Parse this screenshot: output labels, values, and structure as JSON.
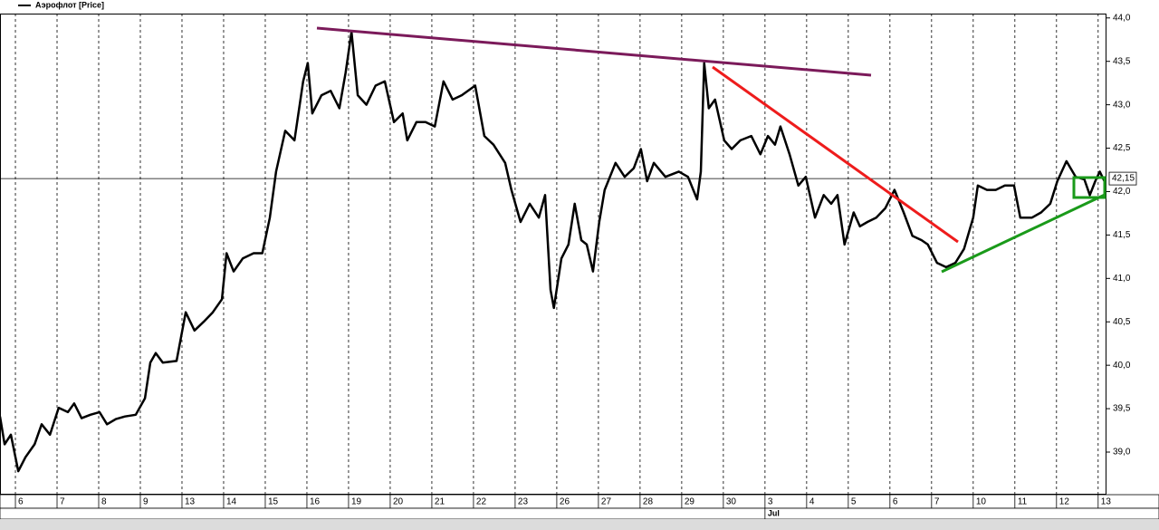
{
  "chart_data": {
    "type": "line",
    "series": [
      {
        "name": "Аэрофлот [Price]",
        "color": "#000000",
        "x": [
          -0.37,
          -0.26,
          -0.11,
          0.07,
          0.24,
          0.46,
          0.63,
          0.83,
          1.04,
          1.26,
          1.41,
          1.59,
          1.8,
          2.02,
          2.2,
          2.41,
          2.63,
          2.89,
          3.11,
          3.24,
          3.37,
          3.54,
          3.87,
          4.09,
          4.3,
          4.52,
          4.74,
          4.96,
          5.07,
          5.24,
          5.46,
          5.72,
          5.93,
          6.11,
          6.26,
          6.48,
          6.7,
          6.91,
          7.02,
          7.13,
          7.35,
          7.57,
          7.78,
          7.93,
          8.07,
          8.22,
          8.43,
          8.65,
          8.87,
          9.09,
          9.3,
          9.41,
          9.63,
          9.85,
          10.07,
          10.28,
          10.5,
          10.72,
          11.04,
          11.26,
          11.48,
          11.76,
          11.91,
          12.13,
          12.35,
          12.57,
          12.72,
          12.85,
          12.93,
          13.11,
          13.28,
          13.43,
          13.59,
          13.72,
          13.87,
          14.02,
          14.15,
          14.41,
          14.63,
          14.85,
          15.02,
          15.17,
          15.33,
          15.61,
          15.93,
          16.15,
          16.37,
          16.46,
          16.54,
          16.65,
          16.8,
          17.02,
          17.2,
          17.41,
          17.67,
          17.89,
          18.07,
          18.24,
          18.37,
          18.59,
          18.8,
          18.98,
          19.2,
          19.41,
          19.59,
          19.74,
          19.91,
          20.13,
          20.28,
          20.46,
          20.67,
          20.89,
          21.11,
          21.33,
          21.54,
          21.76,
          21.91,
          22.13,
          22.35,
          22.57,
          22.78,
          23.0,
          23.11,
          23.33,
          23.54,
          23.76,
          23.98,
          24.13,
          24.41,
          24.63,
          24.85,
          25.02,
          25.24,
          25.46,
          25.67,
          25.8,
          25.93,
          26.04,
          26.15
        ],
        "values": [
          39.41,
          39.09,
          39.2,
          38.78,
          38.94,
          39.09,
          39.32,
          39.2,
          39.51,
          39.46,
          39.56,
          39.39,
          39.43,
          39.46,
          39.32,
          39.38,
          39.41,
          39.43,
          39.62,
          40.03,
          40.14,
          40.03,
          40.05,
          40.61,
          40.4,
          40.5,
          40.61,
          40.76,
          41.29,
          41.08,
          41.23,
          41.29,
          41.29,
          41.7,
          42.23,
          42.7,
          42.59,
          43.27,
          43.48,
          42.9,
          43.11,
          43.16,
          42.96,
          43.37,
          43.84,
          43.11,
          43.0,
          43.22,
          43.27,
          42.8,
          42.9,
          42.59,
          42.8,
          42.8,
          42.75,
          43.27,
          43.06,
          43.11,
          43.22,
          42.64,
          42.54,
          42.33,
          42.02,
          41.65,
          41.86,
          41.7,
          41.96,
          40.87,
          40.66,
          41.23,
          41.39,
          41.86,
          41.44,
          41.39,
          41.08,
          41.65,
          42.02,
          42.33,
          42.17,
          42.27,
          42.49,
          42.12,
          42.33,
          42.17,
          42.23,
          42.17,
          41.91,
          42.23,
          43.48,
          42.96,
          43.06,
          42.59,
          42.49,
          42.59,
          42.64,
          42.43,
          42.64,
          42.54,
          42.75,
          42.43,
          42.07,
          42.17,
          41.7,
          41.96,
          41.86,
          41.96,
          41.39,
          41.76,
          41.6,
          41.65,
          41.7,
          41.81,
          42.02,
          41.76,
          41.49,
          41.44,
          41.39,
          41.18,
          41.13,
          41.18,
          41.34,
          41.7,
          42.07,
          42.02,
          42.02,
          42.07,
          42.07,
          41.7,
          41.7,
          41.76,
          41.86,
          42.12,
          42.35,
          42.17,
          42.14,
          41.96,
          42.12,
          42.23,
          42.12
        ]
      }
    ],
    "xlim": [
      -0.37,
      26.2
    ],
    "xticks": [
      {
        "value": 0,
        "label": "6"
      },
      {
        "value": 1,
        "label": "7"
      },
      {
        "value": 2,
        "label": "8"
      },
      {
        "value": 3,
        "label": "9"
      },
      {
        "value": 4,
        "label": "13"
      },
      {
        "value": 5,
        "label": "14"
      },
      {
        "value": 6,
        "label": "15"
      },
      {
        "value": 7,
        "label": "16"
      },
      {
        "value": 8,
        "label": "19"
      },
      {
        "value": 9,
        "label": "20"
      },
      {
        "value": 10,
        "label": "21"
      },
      {
        "value": 11,
        "label": "22"
      },
      {
        "value": 12,
        "label": "23"
      },
      {
        "value": 13,
        "label": "26"
      },
      {
        "value": 14,
        "label": "27"
      },
      {
        "value": 15,
        "label": "28"
      },
      {
        "value": 16,
        "label": "29"
      },
      {
        "value": 17,
        "label": "30"
      },
      {
        "value": 18,
        "label": "3"
      },
      {
        "value": 19,
        "label": "4"
      },
      {
        "value": 20,
        "label": "5"
      },
      {
        "value": 21,
        "label": "6"
      },
      {
        "value": 22,
        "label": "7"
      },
      {
        "value": 23,
        "label": "10"
      },
      {
        "value": 24,
        "label": "11"
      },
      {
        "value": 25,
        "label": "12"
      },
      {
        "value": 26,
        "label": "13"
      }
    ],
    "month_tick": {
      "value": 18,
      "label": "Jul"
    },
    "ylim": [
      38.52,
      44.05
    ],
    "yticks": [
      {
        "value": 39.0,
        "label": "39,0"
      },
      {
        "value": 39.5,
        "label": "39,5"
      },
      {
        "value": 40.0,
        "label": "40,0"
      },
      {
        "value": 40.5,
        "label": "40,5"
      },
      {
        "value": 41.0,
        "label": "41,0"
      },
      {
        "value": 41.5,
        "label": "41,5"
      },
      {
        "value": 42.0,
        "label": "42,0"
      },
      {
        "value": 42.5,
        "label": "42,5"
      },
      {
        "value": 43.0,
        "label": "43,0"
      },
      {
        "value": 43.5,
        "label": "43,5"
      },
      {
        "value": 44.0,
        "label": "44,0"
      }
    ],
    "last_value": {
      "value": 42.15,
      "label": "42,15"
    },
    "grid": true
  }
}
